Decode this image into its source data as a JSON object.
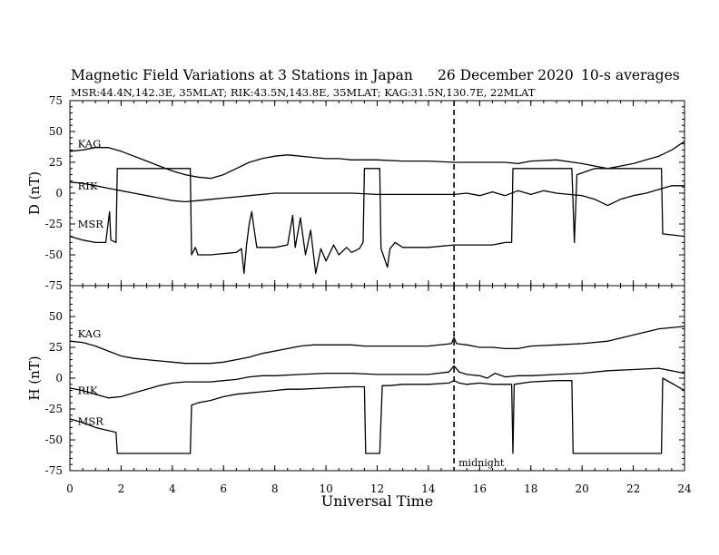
{
  "title": {
    "main": "Magnetic Field Variations at 3 Stations in Japan",
    "date": "26 December 2020",
    "averaging": "10-s averages",
    "stations": "MSR:44.4N,142.3E, 35MLAT;  RIK:43.5N,143.8E, 35MLAT;  KAG:31.5N,130.7E, 22MLAT"
  },
  "annotations": {
    "midnight": "midnight"
  },
  "chart_data": [
    {
      "type": "line",
      "panel": "D",
      "ylabel": "D (nT)",
      "ylim": [
        -75,
        75
      ],
      "yticks": [
        75,
        50,
        25,
        0,
        -25,
        -50,
        -75
      ],
      "xlim": [
        0,
        24
      ],
      "xticks": [
        0,
        2,
        4,
        6,
        8,
        10,
        12,
        14,
        16,
        18,
        20,
        22,
        24
      ],
      "xlabel": "",
      "grid": false,
      "vline": {
        "x": 15,
        "style": "dashed",
        "label": ""
      },
      "series": [
        {
          "name": "KAG",
          "label_at": [
            0.2,
            37
          ],
          "points": [
            [
              0,
              34
            ],
            [
              0.5,
              35
            ],
            [
              1,
              37
            ],
            [
              1.5,
              37
            ],
            [
              2,
              34
            ],
            [
              2.5,
              30
            ],
            [
              3,
              26
            ],
            [
              3.5,
              22
            ],
            [
              4,
              18
            ],
            [
              4.5,
              15
            ],
            [
              5,
              13
            ],
            [
              5.5,
              12
            ],
            [
              6,
              15
            ],
            [
              6.5,
              20
            ],
            [
              7,
              25
            ],
            [
              7.5,
              28
            ],
            [
              8,
              30
            ],
            [
              8.5,
              31
            ],
            [
              9,
              30
            ],
            [
              9.5,
              29
            ],
            [
              10,
              28
            ],
            [
              10.5,
              28
            ],
            [
              11,
              27
            ],
            [
              11.5,
              27
            ],
            [
              12,
              27
            ],
            [
              13,
              26
            ],
            [
              14,
              26
            ],
            [
              15,
              25
            ],
            [
              16,
              25
            ],
            [
              17,
              25
            ],
            [
              17.5,
              24
            ],
            [
              18,
              26
            ],
            [
              19,
              27
            ],
            [
              20,
              24
            ],
            [
              20.5,
              22
            ],
            [
              21,
              20
            ],
            [
              21.5,
              22
            ],
            [
              22,
              24
            ],
            [
              22.5,
              27
            ],
            [
              23,
              30
            ],
            [
              23.5,
              35
            ],
            [
              24,
              42
            ]
          ]
        },
        {
          "name": "RIK",
          "label_at": [
            0.2,
            3
          ],
          "points": [
            [
              0,
              9
            ],
            [
              0.5,
              8
            ],
            [
              1,
              6
            ],
            [
              1.5,
              4
            ],
            [
              2,
              2
            ],
            [
              2.5,
              0
            ],
            [
              3,
              -2
            ],
            [
              3.5,
              -4
            ],
            [
              4,
              -6
            ],
            [
              4.5,
              -7
            ],
            [
              5,
              -6
            ],
            [
              5.5,
              -5
            ],
            [
              6,
              -4
            ],
            [
              6.5,
              -3
            ],
            [
              7,
              -2
            ],
            [
              7.5,
              -1
            ],
            [
              8,
              0
            ],
            [
              9,
              0
            ],
            [
              10,
              0
            ],
            [
              11,
              0
            ],
            [
              12,
              -1
            ],
            [
              13,
              -1
            ],
            [
              14,
              -1
            ],
            [
              15,
              -1
            ],
            [
              15.5,
              0
            ],
            [
              16,
              -2
            ],
            [
              16.5,
              1
            ],
            [
              17,
              -2
            ],
            [
              17.5,
              2
            ],
            [
              18,
              -1
            ],
            [
              18.5,
              2
            ],
            [
              19,
              0
            ],
            [
              19.5,
              -1
            ],
            [
              20,
              -2
            ],
            [
              20.5,
              -5
            ],
            [
              21,
              -10
            ],
            [
              21.5,
              -5
            ],
            [
              22,
              -2
            ],
            [
              22.5,
              0
            ],
            [
              23,
              3
            ],
            [
              23.5,
              6
            ],
            [
              24,
              6
            ]
          ]
        },
        {
          "name": "MSR",
          "label_at": [
            0.2,
            -28
          ],
          "points": [
            [
              0,
              -35
            ],
            [
              0.5,
              -38
            ],
            [
              1,
              -40
            ],
            [
              1.4,
              -40
            ],
            [
              1.55,
              -15
            ],
            [
              1.6,
              -38
            ],
            [
              1.8,
              -40
            ],
            [
              1.85,
              20
            ],
            [
              4.7,
              20
            ],
            [
              4.75,
              -50
            ],
            [
              4.9,
              -44
            ],
            [
              5,
              -50
            ],
            [
              5.5,
              -50
            ],
            [
              6,
              -49
            ],
            [
              6.5,
              -48
            ],
            [
              6.7,
              -45
            ],
            [
              6.8,
              -65
            ],
            [
              6.9,
              -42
            ],
            [
              7,
              -25
            ],
            [
              7.1,
              -15
            ],
            [
              7.2,
              -30
            ],
            [
              7.3,
              -44
            ],
            [
              8,
              -44
            ],
            [
              8.5,
              -42
            ],
            [
              8.7,
              -18
            ],
            [
              8.8,
              -44
            ],
            [
              9,
              -20
            ],
            [
              9.2,
              -50
            ],
            [
              9.4,
              -30
            ],
            [
              9.6,
              -65
            ],
            [
              9.8,
              -45
            ],
            [
              10,
              -55
            ],
            [
              10.3,
              -42
            ],
            [
              10.5,
              -50
            ],
            [
              10.8,
              -44
            ],
            [
              11,
              -48
            ],
            [
              11.3,
              -45
            ],
            [
              11.45,
              -40
            ],
            [
              11.5,
              20
            ],
            [
              12.1,
              20
            ],
            [
              12.15,
              -45
            ],
            [
              12.4,
              -60
            ],
            [
              12.5,
              -45
            ],
            [
              12.7,
              -40
            ],
            [
              13,
              -44
            ],
            [
              14,
              -44
            ],
            [
              15,
              -42
            ],
            [
              16,
              -42
            ],
            [
              16.5,
              -42
            ],
            [
              17,
              -40
            ],
            [
              17.25,
              -40
            ],
            [
              17.3,
              20
            ],
            [
              19.6,
              20
            ],
            [
              19.7,
              -40
            ],
            [
              19.8,
              15
            ],
            [
              20.5,
              20
            ],
            [
              23.1,
              20
            ],
            [
              23.15,
              -33
            ],
            [
              24,
              -35
            ]
          ]
        }
      ]
    },
    {
      "type": "line",
      "panel": "H",
      "ylabel": "H (nT)",
      "ylim": [
        -75,
        75
      ],
      "yticks": [
        75,
        50,
        25,
        0,
        -25,
        -50,
        -75
      ],
      "xlim": [
        0,
        24
      ],
      "xticks": [
        0,
        2,
        4,
        6,
        8,
        10,
        12,
        14,
        16,
        18,
        20,
        22,
        24
      ],
      "xlabel": "Universal Time",
      "grid": false,
      "vline": {
        "x": 15,
        "style": "dashed",
        "label": "midnight"
      },
      "series": [
        {
          "name": "KAG",
          "label_at": [
            0.2,
            33
          ],
          "points": [
            [
              0,
              30
            ],
            [
              0.5,
              29
            ],
            [
              1,
              26
            ],
            [
              1.5,
              22
            ],
            [
              2,
              18
            ],
            [
              2.5,
              16
            ],
            [
              3,
              15
            ],
            [
              3.5,
              14
            ],
            [
              4,
              13
            ],
            [
              4.5,
              12
            ],
            [
              5,
              12
            ],
            [
              5.5,
              12
            ],
            [
              6,
              13
            ],
            [
              6.5,
              15
            ],
            [
              7,
              17
            ],
            [
              7.5,
              20
            ],
            [
              8,
              22
            ],
            [
              8.5,
              24
            ],
            [
              9,
              26
            ],
            [
              9.5,
              27
            ],
            [
              10,
              27
            ],
            [
              10.5,
              27
            ],
            [
              11,
              27
            ],
            [
              11.5,
              26
            ],
            [
              12,
              26
            ],
            [
              13,
              26
            ],
            [
              14,
              26
            ],
            [
              14.9,
              28
            ],
            [
              15,
              33
            ],
            [
              15.1,
              28
            ],
            [
              15.5,
              27
            ],
            [
              16,
              25
            ],
            [
              16.5,
              25
            ],
            [
              17,
              24
            ],
            [
              17.5,
              24
            ],
            [
              18,
              26
            ],
            [
              19,
              27
            ],
            [
              20,
              28
            ],
            [
              21,
              30
            ],
            [
              22,
              35
            ],
            [
              23,
              40
            ],
            [
              24,
              42
            ]
          ]
        },
        {
          "name": "RIK",
          "label_at": [
            0.2,
            -13
          ],
          "points": [
            [
              0,
              -8
            ],
            [
              0.5,
              -10
            ],
            [
              1,
              -13
            ],
            [
              1.5,
              -16
            ],
            [
              2,
              -15
            ],
            [
              2.5,
              -12
            ],
            [
              3,
              -9
            ],
            [
              3.5,
              -6
            ],
            [
              4,
              -4
            ],
            [
              4.5,
              -3
            ],
            [
              5,
              -3
            ],
            [
              5.5,
              -3
            ],
            [
              6,
              -2
            ],
            [
              6.5,
              -1
            ],
            [
              7,
              1
            ],
            [
              7.5,
              2
            ],
            [
              8,
              2
            ],
            [
              9,
              3
            ],
            [
              10,
              4
            ],
            [
              11,
              4
            ],
            [
              12,
              3
            ],
            [
              13,
              3
            ],
            [
              14,
              3
            ],
            [
              14.8,
              5
            ],
            [
              15,
              10
            ],
            [
              15.2,
              5
            ],
            [
              15.5,
              3
            ],
            [
              16,
              2
            ],
            [
              16.3,
              0
            ],
            [
              16.6,
              4
            ],
            [
              17,
              1
            ],
            [
              17.5,
              2
            ],
            [
              18,
              2
            ],
            [
              19,
              3
            ],
            [
              20,
              4
            ],
            [
              21,
              6
            ],
            [
              22,
              7
            ],
            [
              23,
              8
            ],
            [
              24,
              4
            ]
          ]
        },
        {
          "name": "MSR",
          "label_at": [
            0.2,
            -38
          ],
          "points": [
            [
              0,
              -33
            ],
            [
              0.5,
              -36
            ],
            [
              1,
              -40
            ],
            [
              1.4,
              -42
            ],
            [
              1.8,
              -44
            ],
            [
              1.85,
              -61
            ],
            [
              4.7,
              -61
            ],
            [
              4.75,
              -22
            ],
            [
              5,
              -20
            ],
            [
              5.5,
              -18
            ],
            [
              6,
              -15
            ],
            [
              6.5,
              -13
            ],
            [
              7,
              -12
            ],
            [
              7.5,
              -11
            ],
            [
              8,
              -10
            ],
            [
              8.5,
              -9
            ],
            [
              9,
              -9
            ],
            [
              10,
              -8
            ],
            [
              11,
              -7
            ],
            [
              11.5,
              -7
            ],
            [
              11.55,
              -61
            ],
            [
              12.1,
              -61
            ],
            [
              12.2,
              -6
            ],
            [
              12.5,
              -6
            ],
            [
              13,
              -5
            ],
            [
              14,
              -5
            ],
            [
              14.8,
              -4
            ],
            [
              15,
              -2
            ],
            [
              15.2,
              -4
            ],
            [
              15.5,
              -5
            ],
            [
              16,
              -4
            ],
            [
              16.5,
              -5
            ],
            [
              17,
              -5
            ],
            [
              17.25,
              -5
            ],
            [
              17.3,
              -61
            ],
            [
              17.35,
              -5
            ],
            [
              18,
              -3
            ],
            [
              19,
              -2
            ],
            [
              19.6,
              -2
            ],
            [
              19.65,
              -61
            ],
            [
              23.1,
              -61
            ],
            [
              23.15,
              0
            ],
            [
              24,
              -10
            ]
          ]
        }
      ]
    }
  ]
}
